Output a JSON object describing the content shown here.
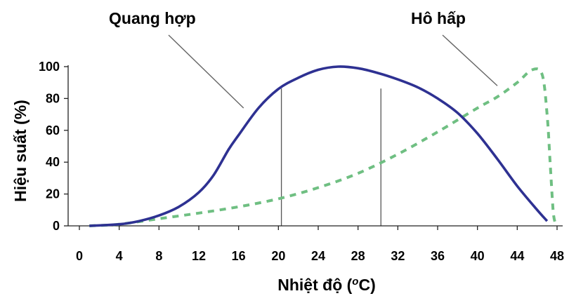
{
  "chart_data": {
    "type": "line",
    "xlabel": "Nhiệt độ (",
    "xlabel_super": "o",
    "xlabel_unit": "C)",
    "ylabel": "Hiệu suất (%)",
    "xlim": [
      0,
      48
    ],
    "ylim": [
      0,
      100
    ],
    "x_ticks": [
      0,
      4,
      8,
      12,
      16,
      20,
      24,
      28,
      32,
      36,
      40,
      44,
      48
    ],
    "y_ticks": [
      0,
      20,
      40,
      60,
      80,
      100
    ],
    "grid": false,
    "series": [
      {
        "name": "Quang hợp",
        "style": "solid",
        "color": "#2e3192",
        "points": [
          [
            1,
            0
          ],
          [
            4,
            1
          ],
          [
            6,
            3
          ],
          [
            8,
            6.5
          ],
          [
            10,
            12
          ],
          [
            12,
            21
          ],
          [
            13.5,
            32
          ],
          [
            15,
            48
          ],
          [
            16,
            57
          ],
          [
            18,
            74
          ],
          [
            20,
            86
          ],
          [
            22,
            93
          ],
          [
            24,
            98
          ],
          [
            26,
            100
          ],
          [
            28,
            99
          ],
          [
            30,
            96
          ],
          [
            32,
            92
          ],
          [
            34,
            87
          ],
          [
            36,
            80
          ],
          [
            38,
            71
          ],
          [
            40,
            58
          ],
          [
            42,
            42
          ],
          [
            44,
            25
          ],
          [
            46,
            10
          ],
          [
            47,
            3
          ]
        ]
      },
      {
        "name": "Hô hấp",
        "style": "dashed",
        "color": "#6fbf82",
        "points": [
          [
            1,
            0
          ],
          [
            4,
            1
          ],
          [
            8,
            4.5
          ],
          [
            12,
            8
          ],
          [
            16,
            12
          ],
          [
            20,
            17
          ],
          [
            24,
            24
          ],
          [
            28,
            33
          ],
          [
            32,
            45
          ],
          [
            36,
            59
          ],
          [
            40,
            74
          ],
          [
            42,
            81
          ],
          [
            44,
            90
          ],
          [
            45.5,
            98
          ],
          [
            46.5,
            95
          ],
          [
            47,
            70
          ],
          [
            47.3,
            40
          ],
          [
            47.6,
            10
          ],
          [
            47.8,
            2
          ]
        ]
      }
    ],
    "annotations": [
      {
        "series": "Quang hợp",
        "points_to": [
          16.5,
          74
        ]
      },
      {
        "series": "Hô hấp",
        "points_to": [
          42,
          88
        ]
      }
    ],
    "reference_lines_x": [
      20.3,
      30.3
    ]
  }
}
